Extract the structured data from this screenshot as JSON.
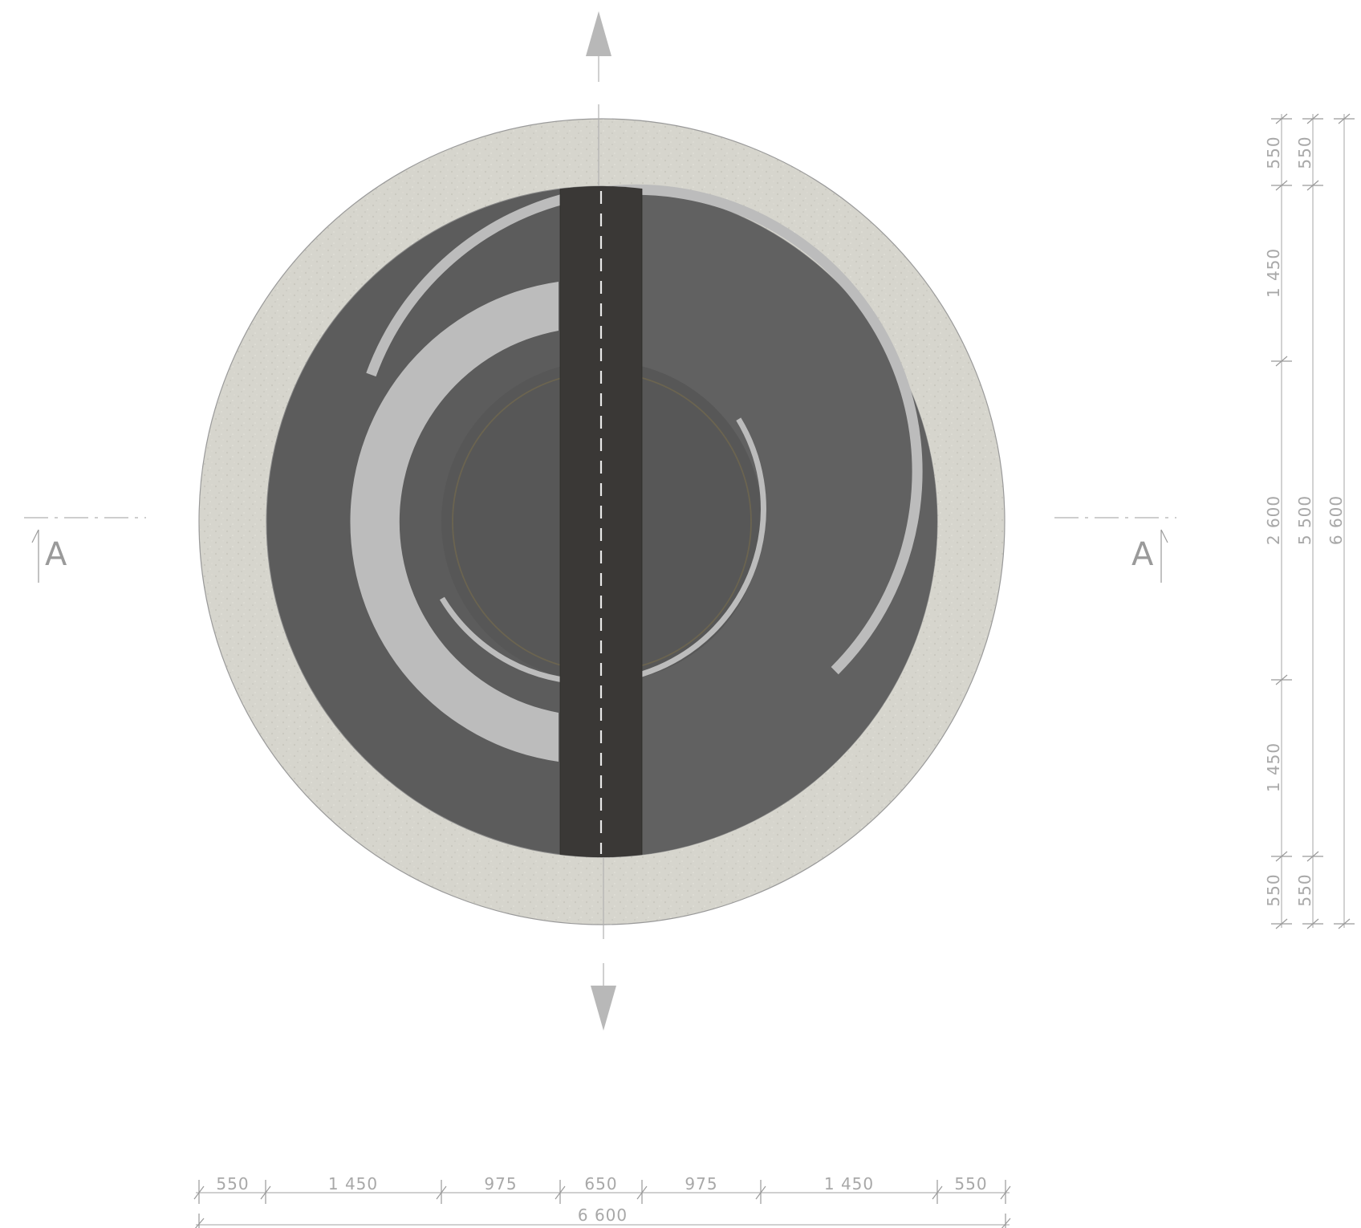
{
  "section": {
    "left_label": "A",
    "right_label": "A"
  },
  "colors": {
    "concrete": "#d6d5cd",
    "asphalt": "#5c5c5c",
    "asphalt_light": "#626262",
    "center_road": "#3a3836",
    "marking": "#bcbcbc",
    "dimension": "#b4b4b4",
    "ring_accent": "#6b6450"
  },
  "icons": {
    "top_arrow": "arrow-up-icon",
    "bottom_arrow": "arrow-down-icon"
  },
  "dimensions": {
    "horizontal": {
      "segments": [
        "550",
        "1 450",
        "975",
        "650",
        "975",
        "1 450",
        "550"
      ],
      "total": "6 600"
    },
    "vertical": {
      "segments": [
        "550",
        "1 450",
        "2 600",
        "1 450",
        "550"
      ],
      "middle": [
        "550",
        "5 500",
        "550"
      ],
      "total": "6 600"
    }
  }
}
